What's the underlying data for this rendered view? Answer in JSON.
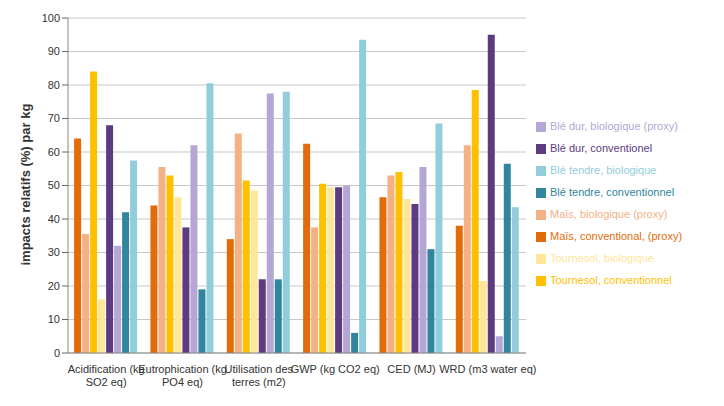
{
  "chart_data": {
    "type": "bar",
    "y_label": "impacts relatifs (%) par kg",
    "categories": [
      "Acidification (kg SO2 eq)",
      "Eutrophication (kg PO4 eq)",
      "Utilisation des terres (m2)",
      "GWP (kg CO2 eq)",
      "CED (MJ)",
      "WRD (m3 water eq)"
    ],
    "series": [
      {
        "name": "Maïs, conventional, (proxy)",
        "color": "#e36c0a",
        "values": [
          64,
          44,
          34,
          62.5,
          46.5,
          38
        ]
      },
      {
        "name": "Maïs, biologique (proxy)",
        "color": "#f4b183",
        "values": [
          35.5,
          55.5,
          65.5,
          37.5,
          53,
          62
        ]
      },
      {
        "name": "Tournesol, conventionnel",
        "color": "#ffc000",
        "values": [
          84,
          53,
          51.5,
          50.5,
          54,
          78.5
        ]
      },
      {
        "name": "Tournesol, biologique",
        "color": "#ffe699",
        "values": [
          16,
          46.5,
          48.5,
          49.5,
          46,
          21.5
        ]
      },
      {
        "name": "Blé dur, conventionel",
        "color": "#5c3b80",
        "values": [
          68,
          37.5,
          22,
          49.5,
          44.5,
          95
        ]
      },
      {
        "name": "Blé dur, biologique (proxy)",
        "color": "#b4a7d6",
        "values": [
          32,
          62,
          77.5,
          50,
          55.5,
          5
        ]
      },
      {
        "name": "Blé tendre, conventionnel",
        "color": "#31859c",
        "values": [
          42,
          19,
          22,
          6,
          31,
          56.5
        ]
      },
      {
        "name": "Blé tendre, biologique",
        "color": "#92cddc",
        "values": [
          57.5,
          80.5,
          78,
          93.5,
          68.5,
          43.5
        ]
      }
    ],
    "ylim": [
      0,
      100
    ],
    "yticks": [
      0,
      10,
      20,
      30,
      40,
      50,
      60,
      70,
      80,
      90,
      100
    ],
    "grid": true,
    "legend": "right"
  }
}
